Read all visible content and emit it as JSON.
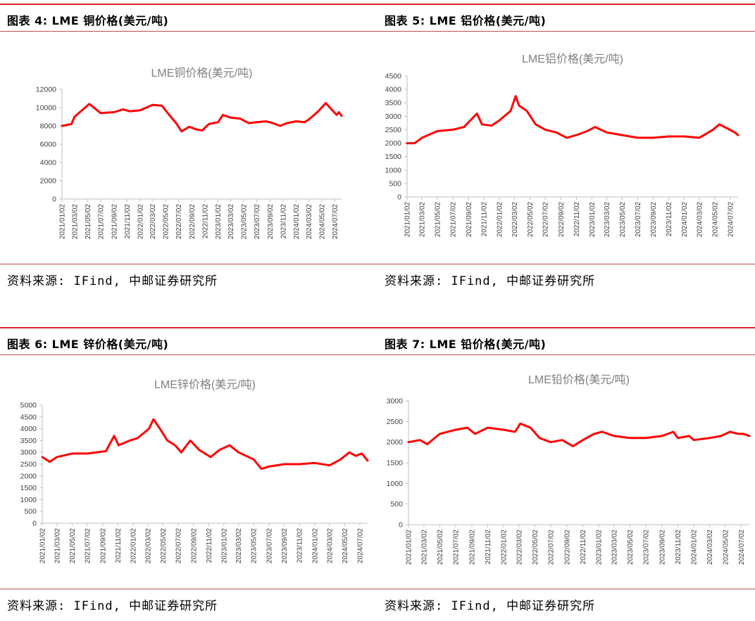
{
  "panels": [
    {
      "figure_title": "图表 4: LME 铜价格(美元/吨)",
      "source": "资料来源: IFind, 中邮证券研究所"
    },
    {
      "figure_title": "图表 5: LME 铝价格(美元/吨)",
      "source": "资料来源: IFind, 中邮证券研究所"
    },
    {
      "figure_title": "图表 6: LME 锌价格(美元/吨)",
      "source": "资料来源: IFind, 中邮证券研究所"
    },
    {
      "figure_title": "图表 7: LME 铅价格(美元/吨)",
      "source": "资料来源: IFind, 中邮证券研究所"
    }
  ],
  "chart_data": [
    {
      "type": "line",
      "title": "LME铜价格(美元/吨)",
      "color": "#ff0000",
      "ylim": [
        0,
        12000
      ],
      "yticks": [
        0,
        2000,
        4000,
        6000,
        8000,
        10000,
        12000
      ],
      "xticks": [
        "2021/01/02",
        "2021/03/02",
        "2021/05/02",
        "2021/07/02",
        "2021/09/02",
        "2021/11/02",
        "2022/01/02",
        "2022/03/02",
        "2022/05/02",
        "2022/07/02",
        "2022/09/02",
        "2022/11/02",
        "2023/01/02",
        "2023/03/02",
        "2023/05/02",
        "2023/07/02",
        "2023/09/02",
        "2023/11/02",
        "2024/01/02",
        "2024/03/02",
        "2024/05/02",
        "2024/07/02"
      ],
      "series": [
        {
          "x": [
            "2021/01/02",
            "2021/02/15",
            "2021/03/02",
            "2021/05/10",
            "2021/07/02",
            "2021/09/02",
            "2021/10/15",
            "2021/11/15",
            "2022/01/02",
            "2022/03/02",
            "2022/04/15",
            "2022/05/15",
            "2022/06/20",
            "2022/07/15",
            "2022/08/20",
            "2022/09/25",
            "2022/10/20",
            "2022/11/20",
            "2023/01/02",
            "2023/01/25",
            "2023/03/02",
            "2023/04/15",
            "2023/05/25",
            "2023/07/02",
            "2023/08/15",
            "2023/09/15",
            "2023/10/20",
            "2023/11/20",
            "2024/01/02",
            "2024/02/10",
            "2024/03/02",
            "2024/04/15",
            "2024/05/20",
            "2024/06/20",
            "2024/07/10",
            "2024/07/20",
            "2024/08/02"
          ],
          "y": [
            8000,
            8200,
            9000,
            10400,
            9400,
            9500,
            9800,
            9600,
            9700,
            10300,
            10200,
            9300,
            8300,
            7400,
            7900,
            7600,
            7500,
            8200,
            8400,
            9200,
            8900,
            8800,
            8300,
            8400,
            8500,
            8300,
            8000,
            8300,
            8500,
            8400,
            8700,
            9600,
            10500,
            9700,
            9200,
            9500,
            9100
          ]
        }
      ]
    },
    {
      "type": "line",
      "title": "LME铝价格(美元/吨)",
      "color": "#ff0000",
      "ylim": [
        0,
        4500
      ],
      "yticks": [
        0,
        500,
        1000,
        1500,
        2000,
        2500,
        3000,
        3500,
        4000,
        4500
      ],
      "xticks": [
        "2021/01/02",
        "2021/03/02",
        "2021/05/02",
        "2021/07/02",
        "2021/09/02",
        "2021/11/02",
        "2022/01/02",
        "2022/03/02",
        "2022/05/02",
        "2022/07/02",
        "2022/09/02",
        "2022/11/02",
        "2023/01/02",
        "2023/03/02",
        "2023/05/02",
        "2023/07/02",
        "2023/09/02",
        "2023/11/02",
        "2024/01/02",
        "2024/03/02",
        "2024/05/02",
        "2024/07/02"
      ],
      "series": [
        {
          "x": [
            "2021/01/02",
            "2021/02/01",
            "2021/03/02",
            "2021/05/02",
            "2021/07/02",
            "2021/08/15",
            "2021/10/05",
            "2021/10/25",
            "2021/12/01",
            "2022/01/02",
            "2022/02/15",
            "2022/03/07",
            "2022/03/20",
            "2022/04/20",
            "2022/05/25",
            "2022/07/02",
            "2022/08/15",
            "2022/09/25",
            "2022/11/02",
            "2022/12/15",
            "2023/01/15",
            "2023/03/02",
            "2023/05/02",
            "2023/07/02",
            "2023/09/02",
            "2023/11/02",
            "2024/01/02",
            "2024/03/02",
            "2024/04/25",
            "2024/05/20",
            "2024/06/20",
            "2024/07/20",
            "2024/08/02"
          ],
          "y": [
            2000,
            2000,
            2200,
            2450,
            2500,
            2600,
            3100,
            2700,
            2650,
            2850,
            3200,
            3750,
            3400,
            3200,
            2700,
            2500,
            2400,
            2200,
            2300,
            2450,
            2600,
            2400,
            2300,
            2200,
            2200,
            2250,
            2250,
            2200,
            2500,
            2700,
            2550,
            2400,
            2300
          ]
        }
      ]
    },
    {
      "type": "line",
      "title": "LME锌价格(美元/吨)",
      "color": "#ff0000",
      "ylim": [
        0,
        5000
      ],
      "yticks": [
        0,
        500,
        1000,
        1500,
        2000,
        2500,
        3000,
        3500,
        4000,
        4500,
        5000
      ],
      "xticks": [
        "2021/01/02",
        "2021/03/02",
        "2021/05/02",
        "2021/07/02",
        "2021/09/02",
        "2021/11/02",
        "2022/01/02",
        "2022/03/02",
        "2022/05/02",
        "2022/07/02",
        "2022/09/02",
        "2022/11/02",
        "2023/01/02",
        "2023/03/02",
        "2023/05/02",
        "2023/07/02",
        "2023/09/02",
        "2023/11/02",
        "2024/01/02",
        "2024/03/02",
        "2024/05/02",
        "2024/07/02"
      ],
      "series": [
        {
          "x": [
            "2021/01/02",
            "2021/02/01",
            "2021/03/02",
            "2021/05/02",
            "2021/07/02",
            "2021/09/15",
            "2021/10/18",
            "2021/11/05",
            "2021/12/20",
            "2022/01/20",
            "2022/03/07",
            "2022/03/25",
            "2022/04/20",
            "2022/05/20",
            "2022/06/20",
            "2022/07/15",
            "2022/08/20",
            "2022/09/25",
            "2022/11/10",
            "2022/12/15",
            "2023/01/25",
            "2023/03/02",
            "2023/05/02",
            "2023/06/02",
            "2023/07/02",
            "2023/09/02",
            "2023/11/02",
            "2024/01/02",
            "2024/03/02",
            "2024/04/15",
            "2024/05/20",
            "2024/06/15",
            "2024/07/10",
            "2024/08/02"
          ],
          "y": [
            2800,
            2600,
            2800,
            2950,
            2950,
            3050,
            3700,
            3300,
            3500,
            3600,
            4000,
            4400,
            4000,
            3500,
            3300,
            3000,
            3500,
            3100,
            2800,
            3100,
            3300,
            3000,
            2700,
            2300,
            2400,
            2500,
            2500,
            2550,
            2450,
            2700,
            3000,
            2850,
            2950,
            2650
          ]
        }
      ]
    },
    {
      "type": "line",
      "title": "LME铅价格(美元/吨)",
      "color": "#ff0000",
      "ylim": [
        0,
        3000
      ],
      "yticks": [
        0,
        500,
        1000,
        1500,
        2000,
        2500,
        3000
      ],
      "xticks": [
        "2021/01/02",
        "2021/03/02",
        "2021/05/02",
        "2021/07/02",
        "2021/09/02",
        "2021/11/02",
        "2022/01/02",
        "2022/03/02",
        "2022/05/02",
        "2022/07/02",
        "2022/09/02",
        "2022/11/02",
        "2023/01/02",
        "2023/03/02",
        "2023/05/02",
        "2023/07/02",
        "2023/09/02",
        "2023/11/02",
        "2024/01/02",
        "2024/03/02",
        "2024/05/02",
        "2024/07/02"
      ],
      "series": [
        {
          "x": [
            "2021/01/02",
            "2021/02/15",
            "2021/03/15",
            "2021/05/02",
            "2021/07/02",
            "2021/08/15",
            "2021/09/15",
            "2021/11/02",
            "2022/01/02",
            "2022/02/15",
            "2022/03/07",
            "2022/04/15",
            "2022/05/20",
            "2022/07/02",
            "2022/08/15",
            "2022/09/25",
            "2022/11/02",
            "2022/12/15",
            "2023/01/15",
            "2023/03/02",
            "2023/05/02",
            "2023/07/02",
            "2023/09/02",
            "2023/10/15",
            "2023/11/02",
            "2023/12/15",
            "2024/01/02",
            "2024/03/02",
            "2024/04/15",
            "2024/05/20",
            "2024/06/20",
            "2024/07/10",
            "2024/08/02"
          ],
          "y": [
            2000,
            2050,
            1950,
            2200,
            2300,
            2350,
            2200,
            2350,
            2300,
            2250,
            2450,
            2350,
            2100,
            2000,
            2050,
            1900,
            2050,
            2200,
            2250,
            2150,
            2100,
            2100,
            2150,
            2250,
            2100,
            2150,
            2050,
            2100,
            2150,
            2250,
            2200,
            2200,
            2150
          ]
        }
      ]
    }
  ]
}
